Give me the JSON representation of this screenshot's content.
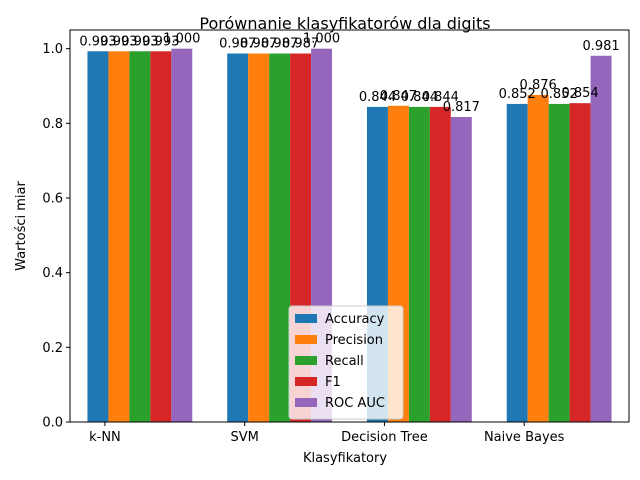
{
  "chart_data": {
    "type": "bar",
    "title": "Porównanie klasyfikatorów dla digits",
    "xlabel": "Klasyfikatory",
    "ylabel": "Wartości miar",
    "categories": [
      "k-NN",
      "SVM",
      "Decision Tree",
      "Naive Bayes"
    ],
    "ylim": [
      0,
      1.05
    ],
    "yticks": [
      "0.0",
      "0.2",
      "0.4",
      "0.6",
      "0.8",
      "1.0"
    ],
    "grid": false,
    "legend_position": "bottom-center",
    "series": [
      {
        "name": "Accuracy",
        "color": "#1f77b4",
        "values": [
          0.993,
          0.987,
          0.844,
          0.852
        ],
        "labels": [
          "0.993",
          "0.987",
          "0.844",
          "0.852"
        ]
      },
      {
        "name": "Precision",
        "color": "#ff7f0e",
        "values": [
          0.993,
          0.987,
          0.847,
          0.876
        ],
        "labels": [
          "0.993",
          "0.987",
          "0.847",
          "0.876"
        ]
      },
      {
        "name": "Recall",
        "color": "#2ca02c",
        "values": [
          0.993,
          0.987,
          0.844,
          0.852
        ],
        "labels": [
          "0.993",
          "0.987",
          "0.844",
          "0.852"
        ]
      },
      {
        "name": "F1",
        "color": "#d62728",
        "values": [
          0.993,
          0.987,
          0.844,
          0.854
        ],
        "labels": [
          "0.993",
          "0.987",
          "0.844",
          "0.854"
        ]
      },
      {
        "name": "ROC AUC",
        "color": "#9467bd",
        "values": [
          1.0,
          1.0,
          0.817,
          0.981
        ],
        "labels": [
          "1.000",
          "1.000",
          "0.817",
          "0.981"
        ]
      }
    ]
  }
}
